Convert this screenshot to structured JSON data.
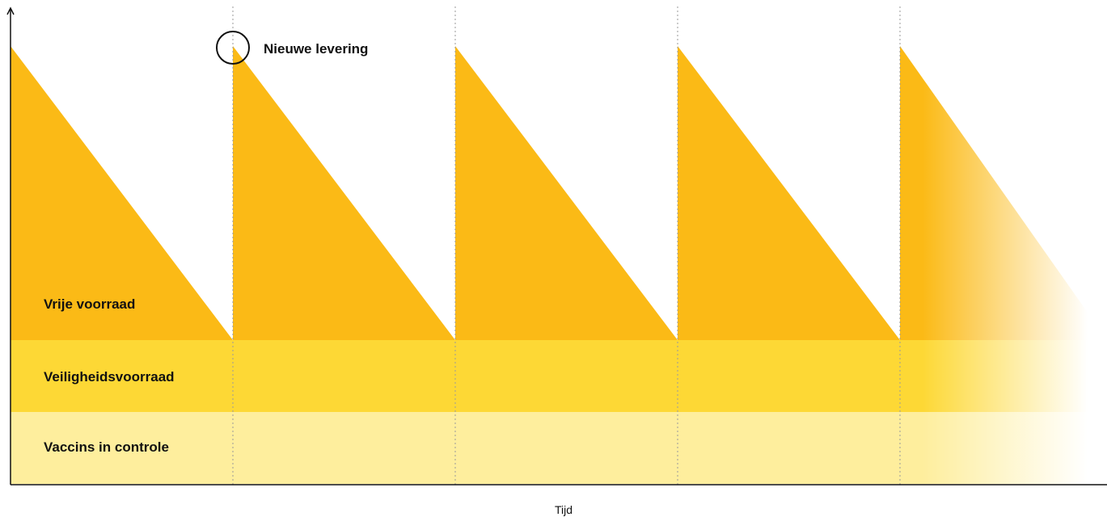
{
  "colors": {
    "free_stock": "#FBBA16",
    "safety_stock": "#FDD835",
    "in_control": "#FEEE9D",
    "axis": "#111111",
    "divider": "#9a9a9a"
  },
  "labels": {
    "free_stock": "Vrije voorraad",
    "safety_stock": "Veiligheidsvoorraad",
    "in_control": "Vaccins in controle",
    "delivery": "Nieuwe levering",
    "x_axis": "Tijd"
  },
  "icons": {
    "delivery_marker": "circle-icon",
    "y_axis_arrow": "arrow-up-icon"
  },
  "delivery_count": 5,
  "last_cycle_fades_out": true
}
